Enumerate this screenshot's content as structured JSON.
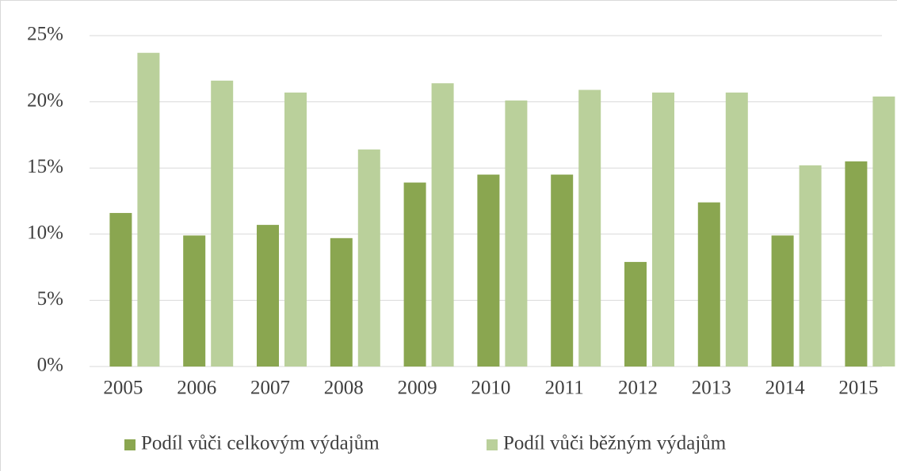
{
  "chart_data": {
    "type": "bar",
    "categories": [
      "2005",
      "2006",
      "2007",
      "2008",
      "2009",
      "2010",
      "2011",
      "2012",
      "2013",
      "2014",
      "2015"
    ],
    "series": [
      {
        "name": "Podíl vůči celkovým výdajům",
        "color": "#8aa650",
        "values": [
          11.6,
          9.9,
          10.7,
          9.7,
          13.9,
          14.5,
          14.5,
          7.9,
          12.4,
          9.9,
          15.5
        ]
      },
      {
        "name": "Podíl vůči běžným výdajům",
        "color": "#bad09b",
        "values": [
          23.7,
          21.6,
          20.7,
          16.4,
          21.4,
          20.1,
          20.9,
          20.7,
          20.7,
          15.2,
          20.4
        ]
      }
    ],
    "ylim": [
      0,
      25
    ],
    "yticks": [
      {
        "value": 0,
        "label": "0%"
      },
      {
        "value": 5,
        "label": "5%"
      },
      {
        "value": 10,
        "label": "10%"
      },
      {
        "value": 15,
        "label": "15%"
      },
      {
        "value": 20,
        "label": "20%"
      },
      {
        "value": 25,
        "label": "25%"
      }
    ],
    "grid": true,
    "legend": "bottom"
  }
}
